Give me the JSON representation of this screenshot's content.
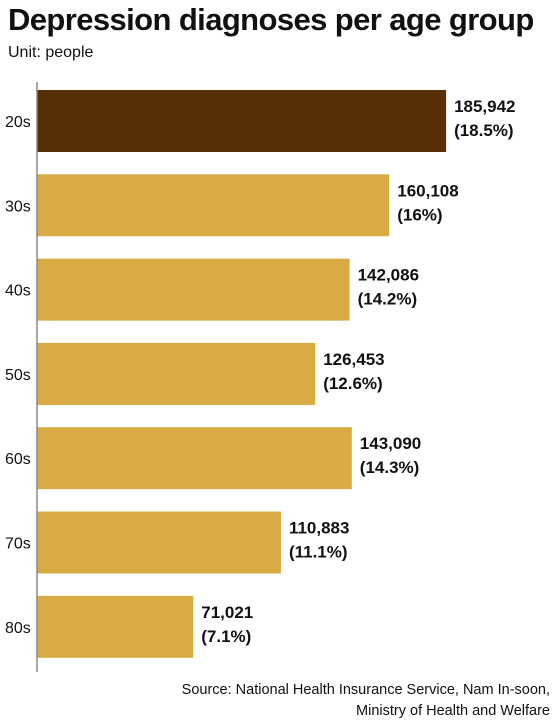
{
  "chart_data": {
    "type": "bar",
    "orientation": "horizontal",
    "title": "Depression diagnoses per age group",
    "subtitle": "Unit: people",
    "categories": [
      "20s",
      "30s",
      "40s",
      "50s",
      "60s",
      "70s",
      "80s"
    ],
    "values": [
      185942,
      160108,
      142086,
      126453,
      143090,
      110883,
      71021
    ],
    "value_labels": [
      "185,942",
      "160,108",
      "142,086",
      "126,453",
      "143,090",
      "110,883",
      "71,021"
    ],
    "percent_labels": [
      "(18.5%)",
      "(16%)",
      "(14.2%)",
      "(12.6%)",
      "(14.3%)",
      "(11.1%)",
      "(7.1%)"
    ],
    "colors": {
      "highlight": "#573105",
      "bar": "#d9ab45",
      "axis": "#888888"
    },
    "highlight_index": 0,
    "xlim": [
      0,
      200000
    ],
    "grid": false
  },
  "source": {
    "line1": "Source: National Health Insurance Service, Nam In-soon,",
    "line2": "Ministry of Health and Welfare"
  }
}
